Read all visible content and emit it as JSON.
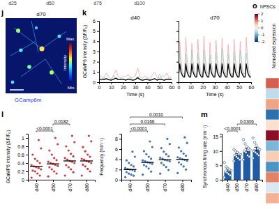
{
  "header": {
    "labels": [
      "d25",
      "d50",
      "d75",
      "d100"
    ]
  },
  "panel_labels": [
    "j",
    "k",
    "l",
    "m",
    "o"
  ],
  "image_panel": {
    "title": "d70",
    "caption": "GCamp6m",
    "colorbar_label": "Intensity",
    "colorbar_max": "Max.",
    "colorbar_min": "Min."
  },
  "heatmap_panel": {
    "title": "hPSCs",
    "colorbar_label": "Normalized expression",
    "colorbar_range": [
      -2,
      2
    ],
    "colorbar_ticks": [
      2,
      1,
      0,
      -1,
      -2
    ],
    "cells": [
      1.2,
      -0.5,
      0.8,
      -1.5,
      0.3,
      1.8,
      -0.9,
      0.5,
      -1.2,
      1.0,
      -0.3,
      0.7
    ]
  },
  "chart_data": [
    {
      "type": "line",
      "title": "d40",
      "x_label": "Time (s)",
      "y_label": "GCaMP6 intensity (ΔF/F₀)",
      "x": [
        0,
        2,
        4,
        6,
        8,
        10,
        12,
        14,
        16,
        18,
        20,
        22,
        24,
        26,
        28,
        30,
        32,
        34,
        36,
        38,
        40,
        42,
        44,
        46,
        48,
        50,
        52,
        54,
        56,
        58,
        60
      ],
      "series": [
        {
          "color": "#f4a3a8",
          "values": [
            0.5,
            0.6,
            0.4,
            0.9,
            0.5,
            0.3,
            0.6,
            1.2,
            0.5,
            0.4,
            0.6,
            0.5,
            0.8,
            0.4,
            0.5,
            0.6,
            1.4,
            0.5,
            0.4,
            0.6,
            0.5,
            0.3,
            0.7,
            1.0,
            0.5,
            0.4,
            0.6,
            0.5,
            0.9,
            0.4,
            0.5
          ]
        },
        {
          "color": "#8fd3c7",
          "values": [
            0.3,
            0.2,
            0.4,
            0.3,
            0.2,
            0.3,
            0.7,
            0.3,
            0.2,
            0.4,
            0.3,
            0.2,
            0.3,
            0.5,
            0.2,
            0.3,
            0.6,
            0.3,
            0.2,
            0.3,
            0.4,
            0.2,
            0.3,
            0.3,
            0.2,
            0.8,
            0.3,
            0.2,
            0.3,
            0.4,
            0.3
          ]
        },
        {
          "color": "#000000",
          "values": [
            0.3,
            0.3,
            0.25,
            0.35,
            0.25,
            0.2,
            0.3,
            0.4,
            0.25,
            0.25,
            0.3,
            0.2,
            0.3,
            0.25,
            0.2,
            0.25,
            0.45,
            0.25,
            0.2,
            0.25,
            0.25,
            0.2,
            0.25,
            0.35,
            0.2,
            0.3,
            0.25,
            0.2,
            0.3,
            0.25,
            0.25
          ]
        }
      ],
      "xlim": [
        0,
        60
      ],
      "xticks": [
        0,
        10,
        20,
        30,
        40,
        50,
        60
      ],
      "ylim": [
        0,
        6
      ],
      "yticks": [
        0,
        1,
        2,
        3,
        4,
        5,
        6
      ]
    },
    {
      "type": "line",
      "title": "d70",
      "x_label": "Time (s)",
      "x": [
        0,
        1,
        2,
        3,
        4,
        5,
        6,
        7,
        8,
        9,
        10,
        11,
        12,
        13,
        14,
        15,
        16,
        17,
        18,
        19,
        20,
        21,
        22,
        23,
        24,
        25,
        26,
        27,
        28,
        29,
        30,
        31,
        32,
        33,
        34,
        35,
        36,
        37,
        38,
        39,
        40,
        41,
        42,
        43,
        44,
        45,
        46,
        47,
        48,
        49,
        50,
        51,
        52,
        53,
        54,
        55,
        56,
        57,
        58,
        59,
        60
      ],
      "series": [
        {
          "color": "#f4a3a8",
          "values": [
            0.8,
            4.0,
            2.2,
            1.2,
            0.8,
            0.9,
            4.4,
            2.4,
            1.3,
            0.8,
            0.8,
            3.8,
            2.1,
            1.1,
            0.7,
            0.9,
            4.2,
            2.3,
            1.2,
            0.8,
            0.8,
            4.5,
            2.5,
            1.3,
            0.9,
            0.8,
            3.9,
            2.2,
            1.2,
            0.8,
            0.9,
            4.1,
            2.3,
            1.2,
            0.8,
            0.8,
            4.3,
            2.4,
            1.3,
            0.8,
            0.8,
            3.7,
            2.0,
            1.1,
            0.7,
            0.9,
            4.2,
            2.3,
            1.2,
            0.8,
            0.8,
            4.0,
            2.2,
            1.2,
            0.8,
            0.9,
            4.4,
            2.4,
            1.3,
            0.8,
            0.8
          ]
        },
        {
          "color": "#8fd3c7",
          "values": [
            0.6,
            3.0,
            1.6,
            0.9,
            0.6,
            0.5,
            2.8,
            1.5,
            0.9,
            0.6,
            0.6,
            3.2,
            1.7,
            1.0,
            0.6,
            0.6,
            2.9,
            1.6,
            0.9,
            0.5,
            0.6,
            3.1,
            1.7,
            1.0,
            0.6,
            0.5,
            2.7,
            1.5,
            0.8,
            0.6,
            0.6,
            3.0,
            1.6,
            0.9,
            0.6,
            0.6,
            3.3,
            1.8,
            1.0,
            0.6,
            0.5,
            2.8,
            1.5,
            0.9,
            0.6,
            0.6,
            3.0,
            1.6,
            0.9,
            0.6,
            0.6,
            3.1,
            1.7,
            1.0,
            0.6,
            0.5,
            2.9,
            1.6,
            0.9,
            0.6,
            0.6
          ]
        },
        {
          "color": "#000000",
          "values": [
            0.5,
            1.8,
            1.0,
            0.7,
            0.5,
            0.5,
            1.8,
            1.0,
            0.7,
            0.5,
            0.5,
            1.8,
            1.0,
            0.7,
            0.5,
            0.5,
            1.8,
            1.0,
            0.7,
            0.5,
            0.5,
            1.8,
            1.0,
            0.7,
            0.5,
            0.5,
            1.8,
            1.0,
            0.7,
            0.5,
            0.5,
            1.8,
            1.0,
            0.7,
            0.5,
            0.5,
            1.8,
            1.0,
            0.7,
            0.5,
            0.5,
            1.8,
            1.0,
            0.7,
            0.5,
            0.5,
            1.8,
            1.0,
            0.7,
            0.5,
            0.5,
            1.8,
            1.0,
            0.7,
            0.5,
            0.5,
            1.8,
            1.0,
            0.7,
            0.5,
            0.5
          ]
        }
      ],
      "xlim": [
        0,
        60
      ],
      "xticks": [
        0,
        10,
        20,
        30,
        40,
        50,
        60
      ],
      "ylim": [
        0,
        6
      ],
      "yticks": [
        0,
        1,
        2,
        3,
        4,
        5,
        6
      ],
      "tick_labels": "x"
    },
    {
      "type": "strip",
      "y_label": "GCaMP6 intensity (ΔF/F₀)",
      "color": "#c8161e",
      "categories": [
        "d40",
        "d50",
        "d70",
        "d80"
      ],
      "values": [
        [
          0.05,
          0.1,
          0.15,
          0.2,
          0.22,
          0.25,
          0.28,
          0.3,
          0.32,
          0.35,
          0.4,
          0.45,
          0.5,
          0.6,
          0.75,
          0.95
        ],
        [
          0.08,
          0.15,
          0.2,
          0.25,
          0.3,
          0.33,
          0.36,
          0.38,
          0.4,
          0.43,
          0.47,
          0.52,
          0.6,
          0.7,
          0.85,
          1.0
        ],
        [
          0.1,
          0.18,
          0.25,
          0.3,
          0.35,
          0.4,
          0.43,
          0.45,
          0.48,
          0.52,
          0.56,
          0.62,
          0.7,
          0.8,
          0.9,
          1.05
        ],
        [
          0.1,
          0.2,
          0.26,
          0.32,
          0.36,
          0.4,
          0.43,
          0.45,
          0.48,
          0.5,
          0.55,
          0.6,
          0.68,
          0.78,
          0.92,
          1.05
        ]
      ],
      "medians": [
        0.32,
        0.38,
        0.45,
        0.45
      ],
      "ylim": [
        0,
        1.1
      ],
      "yticks": [
        0,
        0.2,
        0.4,
        0.6,
        0.8,
        1
      ],
      "significance": [
        {
          "text": "<0.0001",
          "between": [
            "d40",
            "d50"
          ]
        },
        {
          "text": "0.0182",
          "between": [
            "d50",
            "d70"
          ]
        }
      ]
    },
    {
      "type": "strip",
      "y_label": "Frequency (min⁻¹)",
      "color": "#1f5aa6",
      "categories": [
        "d40",
        "d50",
        "d70",
        "d80"
      ],
      "values": [
        [
          0.5,
          0.8,
          1.0,
          1.2,
          1.5,
          1.7,
          1.9,
          2.0,
          2.1,
          2.3,
          2.6,
          2.9,
          3.3,
          3.8,
          4.5,
          5.5
        ],
        [
          1.0,
          1.6,
          2.2,
          2.6,
          2.9,
          3.1,
          3.3,
          3.4,
          3.6,
          3.8,
          4.1,
          4.5,
          5.0,
          5.6,
          6.4,
          7.5
        ],
        [
          1.2,
          1.9,
          2.5,
          2.9,
          3.3,
          3.6,
          3.8,
          3.9,
          4.1,
          4.3,
          4.6,
          5.0,
          5.5,
          6.2,
          7.0,
          8.0
        ],
        [
          1.3,
          2.0,
          2.6,
          3.0,
          3.4,
          3.7,
          3.9,
          4.0,
          4.2,
          4.4,
          4.7,
          5.1,
          5.6,
          6.3,
          7.2,
          8.3
        ]
      ],
      "medians": [
        2.0,
        3.4,
        3.9,
        4.0
      ],
      "ylim": [
        0,
        9
      ],
      "yticks": [
        0,
        2,
        4,
        6,
        8
      ],
      "significance": [
        {
          "text": "<0.0001",
          "between": [
            "d40",
            "d50"
          ]
        },
        {
          "text": "0.0166",
          "between": [
            "d40",
            "d70"
          ]
        },
        {
          "text": "0.0010",
          "between": [
            "d40",
            "d80"
          ]
        }
      ]
    },
    {
      "type": "bar",
      "y_label": "Synchronous firing rate (min⁻¹)",
      "color": "#1f5aa6",
      "categories": [
        "d40",
        "d50",
        "d70",
        "d80"
      ],
      "values": [
        3.0,
        8.5,
        10.0,
        10.5
      ],
      "errors": [
        0.7,
        0.6,
        0.9,
        0.8
      ],
      "points": [
        [
          0.8,
          1.5,
          2.0,
          2.5,
          2.8,
          3.2,
          3.5,
          4.0,
          4.5,
          6.0
        ],
        [
          6.5,
          7.0,
          7.5,
          8.0,
          8.5,
          8.8,
          9.0,
          9.5,
          10.0,
          10.5
        ],
        [
          7.0,
          8.0,
          8.5,
          9.5,
          10.0,
          10.5,
          11.0,
          11.5,
          12.5,
          14.0
        ],
        [
          7.5,
          8.5,
          9.0,
          9.5,
          10.0,
          10.5,
          11.0,
          12.0,
          13.0,
          14.5
        ]
      ],
      "ylim": [
        0,
        16
      ],
      "yticks": [
        0,
        5,
        10,
        15
      ],
      "significance": [
        {
          "text": "<0.0001",
          "between": [
            "d40",
            "d50"
          ]
        },
        {
          "text": "0.0306",
          "between": [
            "d50",
            "d80"
          ]
        }
      ]
    }
  ]
}
